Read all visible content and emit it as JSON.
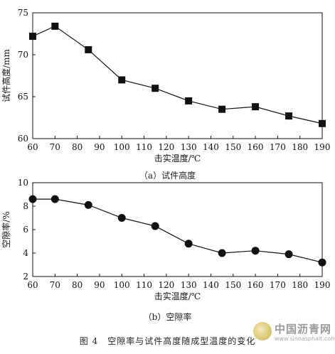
{
  "chart_data": [
    {
      "type": "line",
      "title": "",
      "xlabel": "击实温度/℃",
      "ylabel": "试件高度/mm",
      "caption": "（a）试件高度",
      "x": [
        60,
        70,
        85,
        100,
        115,
        130,
        145,
        160,
        175,
        190
      ],
      "series": [
        {
          "name": "",
          "values": [
            72.2,
            73.4,
            70.6,
            67.0,
            66.0,
            64.5,
            63.5,
            63.8,
            62.7,
            61.8
          ]
        }
      ],
      "marker": "square",
      "xlim": [
        60,
        190
      ],
      "ylim": [
        60,
        75
      ],
      "xticks": [
        "60",
        "70",
        "80",
        "90",
        "100",
        "110",
        "120",
        "130",
        "140",
        "150",
        "160",
        "170",
        "180",
        "190"
      ],
      "yticks": [
        "60",
        "65",
        "70",
        "75"
      ],
      "grid": false,
      "legend": "none"
    },
    {
      "type": "line",
      "title": "",
      "xlabel": "击实温度/℃",
      "ylabel": "空隙率/%",
      "caption": "（b）空隙率",
      "x": [
        60,
        70,
        85,
        100,
        115,
        130,
        145,
        160,
        175,
        190
      ],
      "series": [
        {
          "name": "",
          "values": [
            8.6,
            8.6,
            8.1,
            7.0,
            6.3,
            4.8,
            4.0,
            4.2,
            3.9,
            3.2
          ]
        }
      ],
      "marker": "circle",
      "xlim": [
        60,
        190
      ],
      "ylim": [
        2,
        10
      ],
      "xticks": [
        "60",
        "70",
        "80",
        "90",
        "100",
        "110",
        "120",
        "130",
        "140",
        "150",
        "160",
        "170",
        "180",
        "190"
      ],
      "yticks": [
        "2",
        "4",
        "6",
        "8",
        "10"
      ],
      "grid": false,
      "legend": "none"
    }
  ],
  "figure_caption": "图 4　空隙率与试件高度随成型温度的变化",
  "watermark": {
    "title": "中国沥青网",
    "url": "www.sinoasphalt.com"
  },
  "colors": {
    "line": "#111111",
    "marker": "#111111",
    "axis": "#111111"
  }
}
